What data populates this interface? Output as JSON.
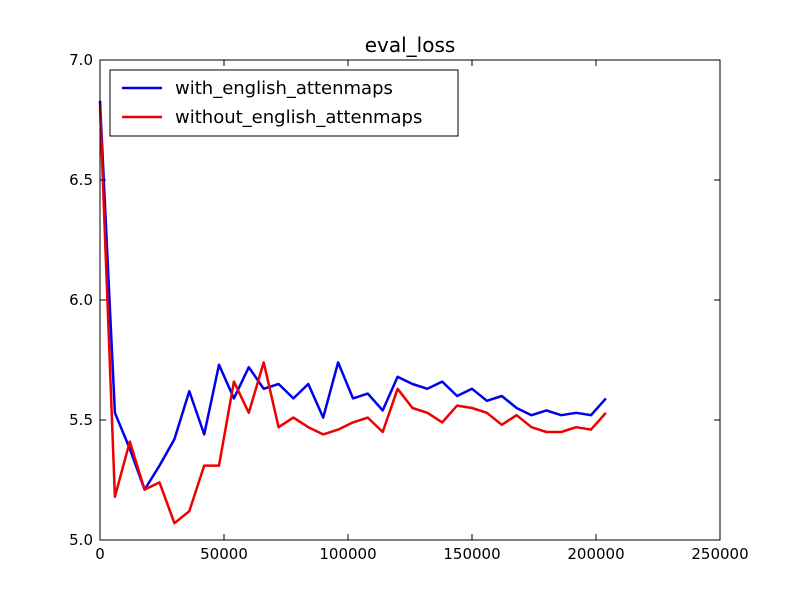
{
  "chart_data": {
    "type": "line",
    "title": "eval_loss",
    "xlabel": "",
    "ylabel": "",
    "xlim": [
      0,
      250000
    ],
    "ylim": [
      5.0,
      7.0
    ],
    "xticks": [
      0,
      50000,
      100000,
      150000,
      200000,
      250000
    ],
    "xtick_labels": [
      "0",
      "50000",
      "100000",
      "150000",
      "200000",
      "250000"
    ],
    "yticks": [
      5.0,
      5.5,
      6.0,
      6.5,
      7.0
    ],
    "ytick_labels": [
      "5.0",
      "5.5",
      "6.0",
      "6.5",
      "7.0"
    ],
    "grid": false,
    "legend_position": "top-left",
    "series": [
      {
        "name": "with_english_attenmaps",
        "color": "#0000ee",
        "x": [
          0,
          6000,
          12000,
          18000,
          24000,
          30000,
          36000,
          42000,
          48000,
          54000,
          60000,
          66000,
          72000,
          78000,
          84000,
          90000,
          96000,
          102000,
          108000,
          114000,
          120000,
          126000,
          132000,
          138000,
          144000,
          150000,
          156000,
          162000,
          168000,
          174000,
          180000,
          186000,
          192000,
          198000,
          204000
        ],
        "y": [
          6.83,
          5.53,
          5.38,
          5.21,
          5.31,
          5.42,
          5.62,
          5.44,
          5.73,
          5.59,
          5.72,
          5.63,
          5.65,
          5.59,
          5.65,
          5.51,
          5.74,
          5.59,
          5.61,
          5.54,
          5.68,
          5.65,
          5.63,
          5.66,
          5.6,
          5.63,
          5.58,
          5.6,
          5.55,
          5.52,
          5.54,
          5.52,
          5.53,
          5.52,
          5.59
        ]
      },
      {
        "name": "without_english_attenmaps",
        "color": "#ee0000",
        "x": [
          0,
          6000,
          12000,
          18000,
          24000,
          30000,
          36000,
          42000,
          48000,
          54000,
          60000,
          66000,
          72000,
          78000,
          84000,
          90000,
          96000,
          102000,
          108000,
          114000,
          120000,
          126000,
          132000,
          138000,
          144000,
          150000,
          156000,
          162000,
          168000,
          174000,
          180000,
          186000,
          192000,
          198000,
          204000
        ],
        "y": [
          6.81,
          5.18,
          5.41,
          5.21,
          5.24,
          5.07,
          5.12,
          5.31,
          5.31,
          5.66,
          5.53,
          5.74,
          5.47,
          5.51,
          5.47,
          5.44,
          5.46,
          5.49,
          5.51,
          5.45,
          5.63,
          5.55,
          5.53,
          5.49,
          5.56,
          5.55,
          5.53,
          5.48,
          5.52,
          5.47,
          5.45,
          5.45,
          5.47,
          5.46,
          5.53
        ]
      }
    ]
  }
}
